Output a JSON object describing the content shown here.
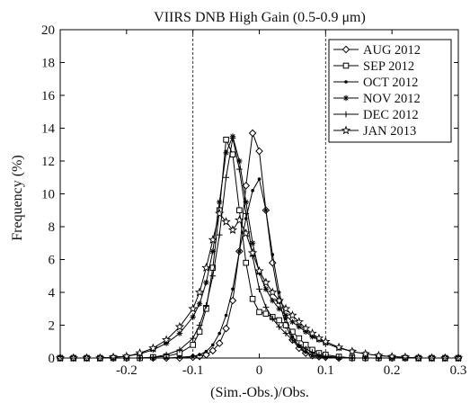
{
  "chart_data": {
    "type": "line",
    "title": "VIIRS DNB High Gain (0.5-0.9 μm)",
    "xlabel": "(Sim.-Obs.)/Obs.",
    "ylabel": "Frequency (%)",
    "xlim": [
      -0.3,
      0.3
    ],
    "ylim": [
      0,
      20
    ],
    "xticks": [
      -0.2,
      -0.1,
      0,
      0.1,
      0.2,
      0.3
    ],
    "xtick_labels": [
      "-0.2",
      "-0.1",
      "0",
      "0.1",
      "0.2",
      "0.3"
    ],
    "yticks": [
      0,
      2,
      4,
      6,
      8,
      10,
      12,
      14,
      16,
      18,
      20
    ],
    "ytick_labels": [
      "0",
      "2",
      "4",
      "6",
      "8",
      "10",
      "12",
      "14",
      "16",
      "18",
      "20"
    ],
    "grid": false,
    "legend_position": "top-right",
    "reference_lines_x": [
      -0.1,
      0.1
    ],
    "series": [
      {
        "name": "AUG 2012",
        "marker": "diamond",
        "x": [
          -0.3,
          -0.28,
          -0.26,
          -0.24,
          -0.22,
          -0.2,
          -0.18,
          -0.16,
          -0.14,
          -0.12,
          -0.1,
          -0.09,
          -0.08,
          -0.07,
          -0.06,
          -0.05,
          -0.04,
          -0.03,
          -0.02,
          -0.01,
          0,
          0.01,
          0.02,
          0.03,
          0.04,
          0.05,
          0.06,
          0.07,
          0.08,
          0.09,
          0.1,
          0.12,
          0.14,
          0.16,
          0.18,
          0.2,
          0.22,
          0.24,
          0.26,
          0.28,
          0.3
        ],
        "y": [
          0,
          0,
          0,
          0,
          0,
          0,
          0,
          0,
          0,
          0,
          0.05,
          0.1,
          0.2,
          0.45,
          0.9,
          1.8,
          3.5,
          6.5,
          10.5,
          13.7,
          12.6,
          9.0,
          5.8,
          3.5,
          2.0,
          1.1,
          0.6,
          0.3,
          0.15,
          0.08,
          0.05,
          0,
          0,
          0,
          0,
          0,
          0,
          0,
          0,
          0,
          0
        ]
      },
      {
        "name": "SEP 2012",
        "marker": "square",
        "x": [
          -0.3,
          -0.28,
          -0.26,
          -0.24,
          -0.22,
          -0.2,
          -0.18,
          -0.16,
          -0.14,
          -0.12,
          -0.1,
          -0.09,
          -0.08,
          -0.07,
          -0.06,
          -0.05,
          -0.04,
          -0.03,
          -0.02,
          -0.01,
          0,
          0.01,
          0.02,
          0.03,
          0.04,
          0.05,
          0.06,
          0.07,
          0.08,
          0.09,
          0.1,
          0.12,
          0.14,
          0.16,
          0.18,
          0.2,
          0.22,
          0.24,
          0.26,
          0.28,
          0.3
        ],
        "y": [
          0,
          0,
          0,
          0,
          0,
          0,
          0,
          0.05,
          0.1,
          0.3,
          0.8,
          1.6,
          3.0,
          5.5,
          9.0,
          13.3,
          12.4,
          9.0,
          5.8,
          3.6,
          2.8,
          2.7,
          2.5,
          2.3,
          2.0,
          1.6,
          1.2,
          0.8,
          0.5,
          0.3,
          0.2,
          0.08,
          0,
          0,
          0,
          0,
          0,
          0,
          0,
          0,
          0
        ]
      },
      {
        "name": "OCT 2012",
        "marker": "dot",
        "x": [
          -0.3,
          -0.28,
          -0.26,
          -0.24,
          -0.22,
          -0.2,
          -0.18,
          -0.16,
          -0.14,
          -0.12,
          -0.1,
          -0.09,
          -0.08,
          -0.07,
          -0.06,
          -0.05,
          -0.04,
          -0.03,
          -0.02,
          -0.01,
          0,
          0.01,
          0.02,
          0.03,
          0.04,
          0.05,
          0.06,
          0.07,
          0.08,
          0.09,
          0.1,
          0.12,
          0.14,
          0.16,
          0.18,
          0.2,
          0.22,
          0.24,
          0.26,
          0.28,
          0.3
        ],
        "y": [
          0,
          0,
          0,
          0,
          0,
          0,
          0,
          0,
          0,
          0.05,
          0.1,
          0.2,
          0.4,
          0.8,
          1.5,
          2.6,
          4.2,
          6.5,
          8.5,
          10.2,
          10.9,
          9.0,
          6.3,
          4.0,
          2.4,
          1.3,
          0.7,
          0.35,
          0.15,
          0.08,
          0.05,
          0,
          0,
          0,
          0,
          0,
          0,
          0,
          0,
          0,
          0
        ]
      },
      {
        "name": "NOV 2012",
        "marker": "star",
        "x": [
          -0.3,
          -0.28,
          -0.26,
          -0.24,
          -0.22,
          -0.2,
          -0.18,
          -0.16,
          -0.14,
          -0.12,
          -0.1,
          -0.09,
          -0.08,
          -0.07,
          -0.06,
          -0.05,
          -0.04,
          -0.03,
          -0.02,
          -0.01,
          0,
          0.01,
          0.02,
          0.03,
          0.04,
          0.05,
          0.06,
          0.07,
          0.08,
          0.09,
          0.1,
          0.12,
          0.14,
          0.16,
          0.18,
          0.2,
          0.22,
          0.24,
          0.26,
          0.28,
          0.3
        ],
        "y": [
          0,
          0,
          0,
          0,
          0.05,
          0.1,
          0.25,
          0.5,
          0.9,
          1.5,
          2.5,
          3.3,
          4.6,
          6.5,
          9.5,
          12.5,
          13.5,
          12.0,
          9.5,
          7.0,
          5.2,
          4.2,
          3.5,
          3.0,
          2.6,
          2.2,
          1.9,
          1.6,
          1.3,
          1.1,
          0.9,
          0.6,
          0.4,
          0.25,
          0.15,
          0.08,
          0.05,
          0,
          0,
          0,
          0
        ]
      },
      {
        "name": "DEC 2012",
        "marker": "plus",
        "x": [
          -0.3,
          -0.28,
          -0.26,
          -0.24,
          -0.22,
          -0.2,
          -0.18,
          -0.16,
          -0.14,
          -0.12,
          -0.1,
          -0.09,
          -0.08,
          -0.07,
          -0.06,
          -0.05,
          -0.04,
          -0.03,
          -0.02,
          -0.01,
          0,
          0.01,
          0.02,
          0.03,
          0.04,
          0.05,
          0.06,
          0.07,
          0.08,
          0.09,
          0.1,
          0.12,
          0.14,
          0.16,
          0.18,
          0.2,
          0.22,
          0.24,
          0.26,
          0.28,
          0.3
        ],
        "y": [
          0,
          0,
          0,
          0,
          0,
          0,
          0,
          0.05,
          0.2,
          0.5,
          1.2,
          2.0,
          3.2,
          5.0,
          7.5,
          11.0,
          13.4,
          11.5,
          8.8,
          6.2,
          4.2,
          3.1,
          2.4,
          1.9,
          1.5,
          1.1,
          0.8,
          0.55,
          0.35,
          0.2,
          0.1,
          0.05,
          0,
          0,
          0,
          0,
          0,
          0,
          0,
          0,
          0
        ]
      },
      {
        "name": "JAN 2013",
        "marker": "pentagram",
        "x": [
          -0.3,
          -0.28,
          -0.26,
          -0.24,
          -0.22,
          -0.2,
          -0.18,
          -0.16,
          -0.14,
          -0.12,
          -0.1,
          -0.09,
          -0.08,
          -0.07,
          -0.06,
          -0.05,
          -0.04,
          -0.03,
          -0.02,
          -0.01,
          0,
          0.01,
          0.02,
          0.03,
          0.04,
          0.05,
          0.06,
          0.07,
          0.08,
          0.09,
          0.1,
          0.12,
          0.14,
          0.16,
          0.18,
          0.2,
          0.22,
          0.24,
          0.26,
          0.28,
          0.3
        ],
        "y": [
          0,
          0,
          0,
          0,
          0.05,
          0.1,
          0.3,
          0.6,
          1.1,
          1.9,
          3.0,
          4.0,
          5.5,
          7.2,
          8.8,
          8.3,
          7.8,
          8.4,
          7.6,
          6.4,
          5.3,
          4.6,
          4.0,
          3.5,
          3.0,
          2.6,
          2.2,
          1.8,
          1.5,
          1.2,
          1.0,
          0.65,
          0.4,
          0.25,
          0.15,
          0.08,
          0.05,
          0,
          0,
          0,
          0
        ]
      }
    ]
  }
}
